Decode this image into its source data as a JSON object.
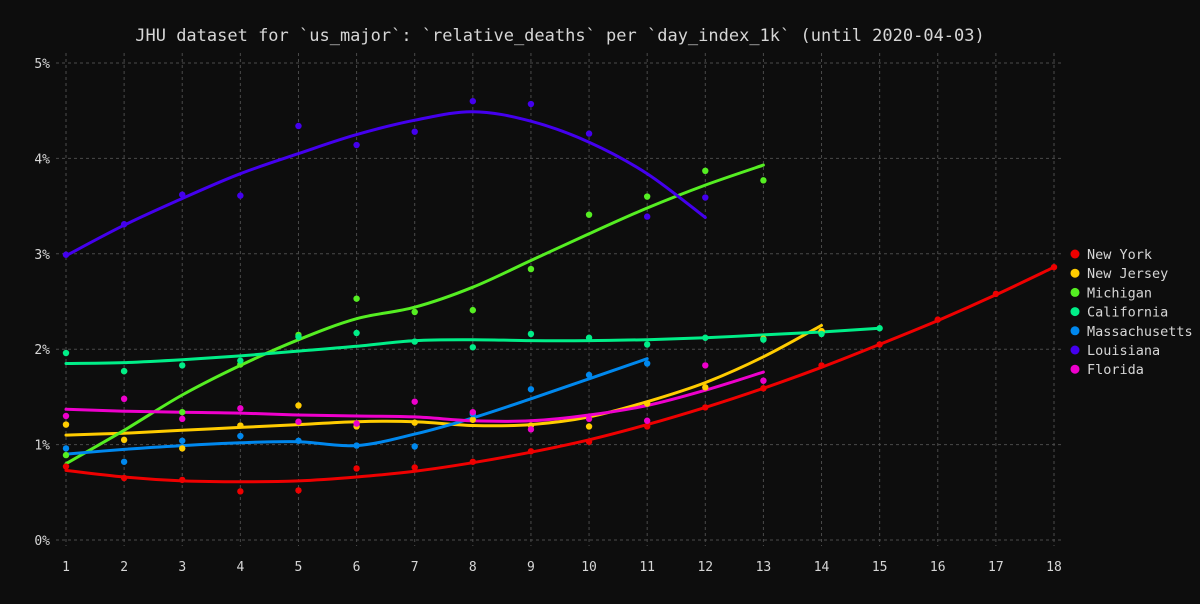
{
  "chart_data": {
    "type": "line",
    "title": "JHU dataset for `us_major`: `relative_deaths` per `day_index_1k` (until 2020-04-03)",
    "xlabel": "",
    "ylabel": "",
    "xlim": [
      1,
      18
    ],
    "ylim": [
      0,
      0.05
    ],
    "xticks": [
      1,
      2,
      3,
      4,
      5,
      6,
      7,
      8,
      9,
      10,
      11,
      12,
      13,
      14,
      15,
      16,
      17,
      18
    ],
    "yticks": [
      {
        "value": 0,
        "label": "0%"
      },
      {
        "value": 0.01,
        "label": "1%"
      },
      {
        "value": 0.02,
        "label": "2%"
      },
      {
        "value": 0.03,
        "label": "3%"
      },
      {
        "value": 0.04,
        "label": "4%"
      },
      {
        "value": 0.05,
        "label": "5%"
      }
    ],
    "grid": true,
    "legend_position": "right",
    "background": "#0d0d0d",
    "grid_color": "#4a4a4a",
    "series": [
      {
        "name": "New York",
        "color": "#ee0000",
        "points": [
          [
            1,
            0.0077
          ],
          [
            2,
            0.0065
          ],
          [
            3,
            0.0063
          ],
          [
            4,
            0.0051
          ],
          [
            5,
            0.0052
          ],
          [
            6,
            0.0075
          ],
          [
            7,
            0.0076
          ],
          [
            8,
            0.0082
          ],
          [
            9,
            0.0093
          ],
          [
            10,
            0.0103
          ],
          [
            11,
            0.0119
          ],
          [
            12,
            0.0139
          ],
          [
            13,
            0.0159
          ],
          [
            14,
            0.0183
          ],
          [
            15,
            0.0205
          ],
          [
            16,
            0.0231
          ],
          [
            17,
            0.0258
          ],
          [
            18,
            0.0286
          ]
        ],
        "trend": [
          [
            1,
            0.0073
          ],
          [
            2,
            0.0066
          ],
          [
            3,
            0.0062
          ],
          [
            4,
            0.0061
          ],
          [
            5,
            0.0062
          ],
          [
            6,
            0.0066
          ],
          [
            7,
            0.0072
          ],
          [
            8,
            0.0081
          ],
          [
            9,
            0.0092
          ],
          [
            10,
            0.0105
          ],
          [
            11,
            0.0121
          ],
          [
            12,
            0.0139
          ],
          [
            13,
            0.0159
          ],
          [
            14,
            0.0181
          ],
          [
            15,
            0.0205
          ],
          [
            16,
            0.023
          ],
          [
            17,
            0.0257
          ],
          [
            18,
            0.0286
          ]
        ]
      },
      {
        "name": "New Jersey",
        "color": "#ffcc00",
        "points": [
          [
            1,
            0.0121
          ],
          [
            2,
            0.0105
          ],
          [
            3,
            0.0096
          ],
          [
            4,
            0.012
          ],
          [
            5,
            0.0141
          ],
          [
            6,
            0.0119
          ],
          [
            7,
            0.0123
          ],
          [
            8,
            0.0126
          ],
          [
            9,
            0.012
          ],
          [
            10,
            0.0119
          ],
          [
            11,
            0.0143
          ],
          [
            12,
            0.016
          ],
          [
            13,
            0.0211
          ],
          [
            14,
            0.0219
          ]
        ],
        "trend": [
          [
            1,
            0.011
          ],
          [
            2,
            0.0112
          ],
          [
            3,
            0.0115
          ],
          [
            4,
            0.0118
          ],
          [
            5,
            0.0121
          ],
          [
            6,
            0.0124
          ],
          [
            7,
            0.0124
          ],
          [
            8,
            0.012
          ],
          [
            9,
            0.0121
          ],
          [
            10,
            0.0129
          ],
          [
            11,
            0.0145
          ],
          [
            12,
            0.0165
          ],
          [
            13,
            0.0192
          ],
          [
            14,
            0.0225
          ]
        ]
      },
      {
        "name": "Michigan",
        "color": "#55ee22",
        "points": [
          [
            1,
            0.0089
          ],
          [
            2,
            0.0177
          ],
          [
            3,
            0.0134
          ],
          [
            4,
            0.0184
          ],
          [
            5,
            0.0215
          ],
          [
            6,
            0.0253
          ],
          [
            7,
            0.0239
          ],
          [
            8,
            0.0241
          ],
          [
            9,
            0.0284
          ],
          [
            10,
            0.0341
          ],
          [
            11,
            0.036
          ],
          [
            12,
            0.0387
          ],
          [
            13,
            0.0377
          ]
        ],
        "trend": [
          [
            1,
            0.008
          ],
          [
            2,
            0.0115
          ],
          [
            3,
            0.0152
          ],
          [
            4,
            0.0183
          ],
          [
            5,
            0.021
          ],
          [
            6,
            0.0232
          ],
          [
            7,
            0.0244
          ],
          [
            8,
            0.0265
          ],
          [
            9,
            0.0293
          ],
          [
            10,
            0.0321
          ],
          [
            11,
            0.0348
          ],
          [
            12,
            0.0372
          ],
          [
            13,
            0.0393
          ]
        ]
      },
      {
        "name": "California",
        "color": "#00ee88",
        "points": [
          [
            1,
            0.0196
          ],
          [
            2,
            0.0177
          ],
          [
            3,
            0.0183
          ],
          [
            4,
            0.0188
          ],
          [
            5,
            0.0213
          ],
          [
            6,
            0.0217
          ],
          [
            7,
            0.0208
          ],
          [
            8,
            0.0202
          ],
          [
            9,
            0.0216
          ],
          [
            10,
            0.0212
          ],
          [
            11,
            0.0205
          ],
          [
            12,
            0.0212
          ],
          [
            13,
            0.021
          ],
          [
            14,
            0.0216
          ],
          [
            15,
            0.0222
          ]
        ],
        "trend": [
          [
            1,
            0.0185
          ],
          [
            2,
            0.0186
          ],
          [
            3,
            0.0189
          ],
          [
            4,
            0.0193
          ],
          [
            5,
            0.0198
          ],
          [
            6,
            0.0203
          ],
          [
            7,
            0.0209
          ],
          [
            8,
            0.021
          ],
          [
            9,
            0.0209
          ],
          [
            10,
            0.0209
          ],
          [
            11,
            0.021
          ],
          [
            12,
            0.0212
          ],
          [
            13,
            0.0215
          ],
          [
            14,
            0.0218
          ],
          [
            15,
            0.0222
          ]
        ]
      },
      {
        "name": "Massachusetts",
        "color": "#0088ee",
        "points": [
          [
            1,
            0.0096
          ],
          [
            2,
            0.0082
          ],
          [
            3,
            0.0104
          ],
          [
            4,
            0.0109
          ],
          [
            5,
            0.0104
          ],
          [
            6,
            0.0099
          ],
          [
            7,
            0.0098
          ],
          [
            8,
            0.0132
          ],
          [
            9,
            0.0158
          ],
          [
            10,
            0.0173
          ],
          [
            11,
            0.0185
          ]
        ],
        "trend": [
          [
            1,
            0.009
          ],
          [
            2,
            0.0095
          ],
          [
            3,
            0.0099
          ],
          [
            4,
            0.0102
          ],
          [
            5,
            0.0103
          ],
          [
            6,
            0.0099
          ],
          [
            7,
            0.0111
          ],
          [
            8,
            0.0128
          ],
          [
            9,
            0.0148
          ],
          [
            10,
            0.0169
          ],
          [
            11,
            0.019
          ]
        ]
      },
      {
        "name": "Louisiana",
        "color": "#4400ee",
        "points": [
          [
            1,
            0.0299
          ],
          [
            2,
            0.0331
          ],
          [
            3,
            0.0362
          ],
          [
            4,
            0.0361
          ],
          [
            5,
            0.0434
          ],
          [
            6,
            0.0414
          ],
          [
            7,
            0.0428
          ],
          [
            8,
            0.046
          ],
          [
            9,
            0.0457
          ],
          [
            10,
            0.0426
          ],
          [
            11,
            0.0339
          ],
          [
            12,
            0.0359
          ]
        ],
        "trend": [
          [
            1,
            0.0298
          ],
          [
            2,
            0.033
          ],
          [
            3,
            0.0358
          ],
          [
            4,
            0.0384
          ],
          [
            5,
            0.0405
          ],
          [
            6,
            0.0425
          ],
          [
            7,
            0.044
          ],
          [
            8,
            0.0449
          ],
          [
            9,
            0.0439
          ],
          [
            10,
            0.0417
          ],
          [
            11,
            0.0384
          ],
          [
            12,
            0.0338
          ]
        ]
      },
      {
        "name": "Florida",
        "color": "#ee00cc",
        "points": [
          [
            1,
            0.013
          ],
          [
            2,
            0.0148
          ],
          [
            3,
            0.0127
          ],
          [
            4,
            0.0138
          ],
          [
            5,
            0.0124
          ],
          [
            6,
            0.0122
          ],
          [
            7,
            0.0145
          ],
          [
            8,
            0.0134
          ],
          [
            9,
            0.0116
          ],
          [
            10,
            0.0127
          ],
          [
            11,
            0.0125
          ],
          [
            12,
            0.0183
          ],
          [
            13,
            0.0167
          ]
        ],
        "trend": [
          [
            1,
            0.0137
          ],
          [
            2,
            0.0135
          ],
          [
            3,
            0.0134
          ],
          [
            4,
            0.0133
          ],
          [
            5,
            0.0131
          ],
          [
            6,
            0.013
          ],
          [
            7,
            0.0129
          ],
          [
            8,
            0.0125
          ],
          [
            9,
            0.0125
          ],
          [
            10,
            0.0131
          ],
          [
            11,
            0.0141
          ],
          [
            12,
            0.0157
          ],
          [
            13,
            0.0176
          ]
        ]
      }
    ]
  }
}
